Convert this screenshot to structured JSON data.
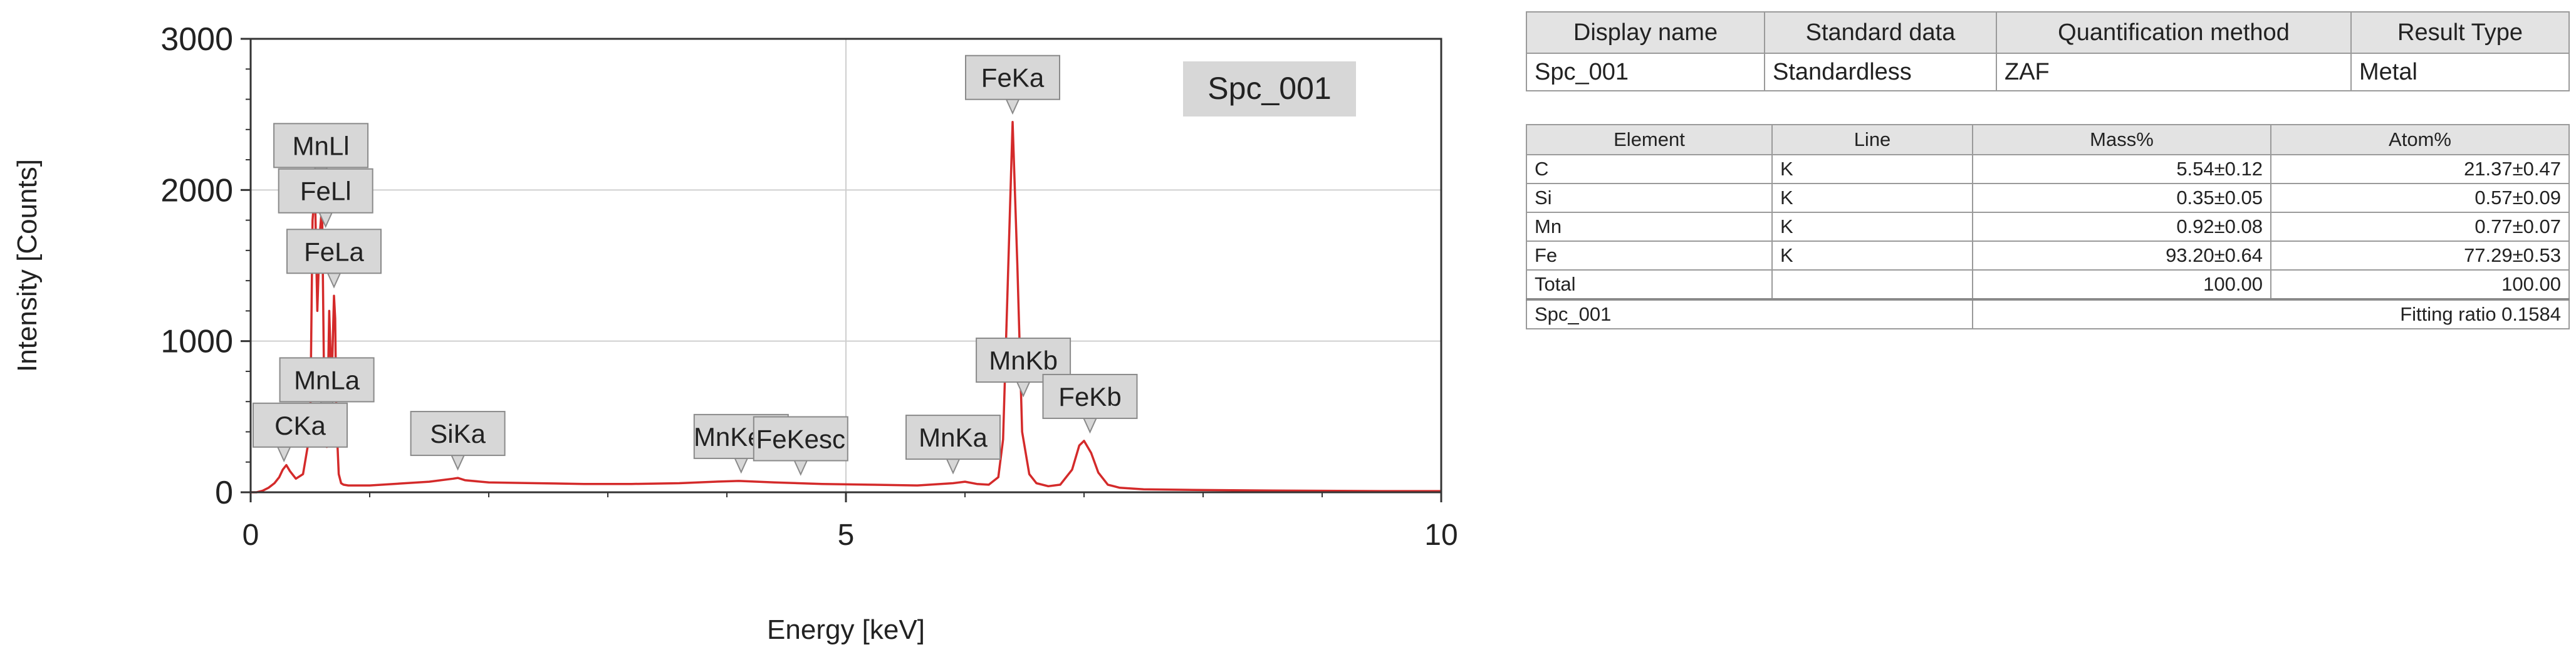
{
  "chart_data": {
    "type": "line",
    "xlabel": "Energy [keV]",
    "ylabel": "Intensity [Counts]",
    "xlim": [
      0,
      10
    ],
    "ylim": [
      0,
      3000
    ],
    "xticks": [
      "0",
      "5",
      "10"
    ],
    "yticks": [
      "0",
      "1000",
      "2000",
      "3000"
    ],
    "grid": true,
    "line_color": "#d42a2a",
    "legend_label": "Spc_001",
    "legend_position": "top-right",
    "series": [
      {
        "x": [
          0.0,
          0.05,
          0.1,
          0.15,
          0.2,
          0.24,
          0.27,
          0.3,
          0.33,
          0.38,
          0.44,
          0.5,
          0.52,
          0.54,
          0.56,
          0.58,
          0.6,
          0.62,
          0.64,
          0.66,
          0.68,
          0.7,
          0.71,
          0.72,
          0.73,
          0.74,
          0.76,
          0.78,
          0.82,
          0.9,
          1.0,
          1.2,
          1.5,
          1.7,
          1.74,
          1.8,
          2.0,
          2.4,
          2.8,
          3.2,
          3.6,
          3.9,
          4.1,
          4.4,
          4.8,
          5.2,
          5.6,
          5.9,
          6.0,
          6.1,
          6.2,
          6.28,
          6.32,
          6.36,
          6.4,
          6.44,
          6.48,
          6.54,
          6.6,
          6.7,
          6.8,
          6.9,
          6.96,
          7.0,
          7.06,
          7.12,
          7.2,
          7.3,
          7.5,
          8.0,
          8.5,
          9.0,
          9.5,
          10.0
        ],
        "y": [
          0,
          0,
          10,
          30,
          60,
          100,
          150,
          180,
          140,
          90,
          120,
          400,
          1800,
          2000,
          1200,
          1700,
          1900,
          500,
          300,
          1200,
          700,
          1300,
          1150,
          500,
          300,
          120,
          60,
          50,
          45,
          45,
          45,
          55,
          70,
          90,
          95,
          80,
          65,
          60,
          55,
          55,
          60,
          70,
          75,
          65,
          55,
          50,
          45,
          60,
          70,
          55,
          50,
          100,
          350,
          1400,
          2450,
          1500,
          400,
          120,
          60,
          40,
          50,
          150,
          310,
          340,
          260,
          130,
          50,
          30,
          20,
          15,
          12,
          10,
          8,
          8
        ]
      }
    ],
    "annotations": [
      {
        "label": "MnLl",
        "x": 0.59,
        "y": 2000
      },
      {
        "label": "FeLl",
        "x": 0.63,
        "y": 1700
      },
      {
        "label": "FeLa",
        "x": 0.7,
        "y": 1300
      },
      {
        "label": "MnLa",
        "x": 0.64,
        "y": 450
      },
      {
        "label": "CKa",
        "x": 0.28,
        "y": 150
      },
      {
        "label": "SiKa",
        "x": 1.74,
        "y": 95
      },
      {
        "label": "MnKesc",
        "x": 4.12,
        "y": 75
      },
      {
        "label": "FeKesc",
        "x": 4.62,
        "y": 60
      },
      {
        "label": "MnKa",
        "x": 5.9,
        "y": 70
      },
      {
        "label": "FeKa",
        "x": 6.4,
        "y": 2450
      },
      {
        "label": "MnKb",
        "x": 6.49,
        "y": 580
      },
      {
        "label": "FeKb",
        "x": 7.05,
        "y": 340
      }
    ]
  },
  "info_table": {
    "headers": [
      "Display name",
      "Standard data",
      "Quantification method",
      "Result Type"
    ],
    "row": [
      "Spc_001",
      "Standardless",
      "ZAF",
      "Metal"
    ]
  },
  "result_table": {
    "headers": [
      "Element",
      "Line",
      "Mass%",
      "Atom%"
    ],
    "rows": [
      [
        "C",
        "K",
        "5.54±0.12",
        "21.37±0.47"
      ],
      [
        "Si",
        "K",
        "0.35±0.05",
        "0.57±0.09"
      ],
      [
        "Mn",
        "K",
        "0.92±0.08",
        "0.77±0.07"
      ],
      [
        "Fe",
        "K",
        "93.20±0.64",
        "77.29±0.53"
      ],
      [
        "Total",
        "",
        "100.00",
        "100.00"
      ]
    ],
    "footer_name": "Spc_001",
    "footer_ratio": "Fitting ratio 0.1584"
  }
}
